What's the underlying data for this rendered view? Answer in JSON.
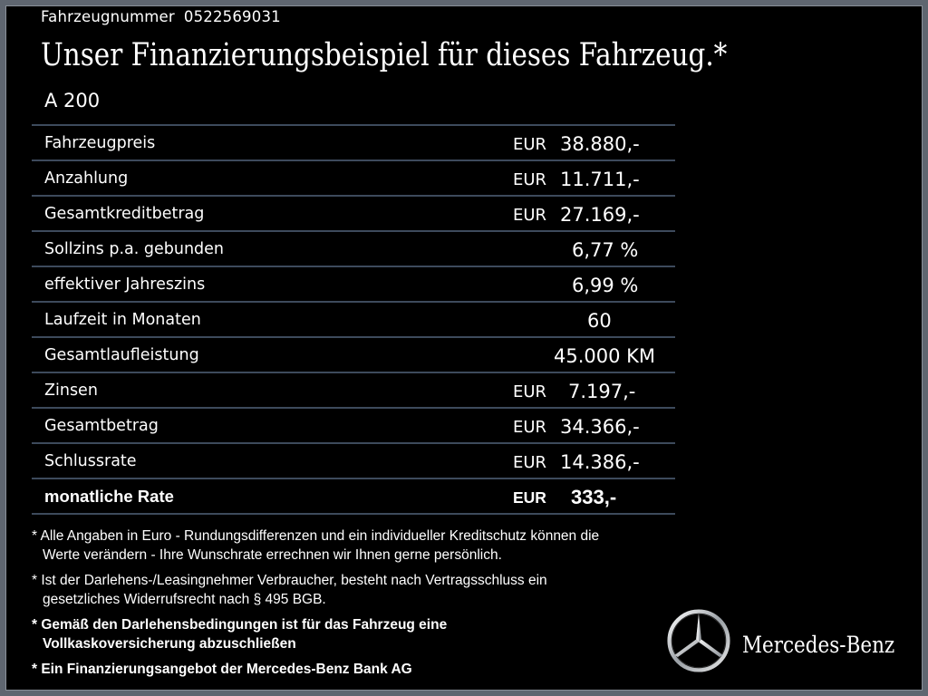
{
  "vehicle": {
    "number_label": "Fahrzeugnummer",
    "number_value": "0522569031"
  },
  "headline": "Unser Finanzierungsbeispiel für dieses Fahrzeug.*",
  "model": "A 200",
  "rows": [
    {
      "label": "Fahrzeugpreis",
      "currency": "EUR",
      "amount": "38.880,-"
    },
    {
      "label": "Anzahlung",
      "currency": "EUR",
      "amount": "11.711,-"
    },
    {
      "label": "Gesamtkreditbetrag",
      "currency": "EUR",
      "amount": "27.169,-"
    },
    {
      "label": "Sollzins p.a. gebunden",
      "value": "6,77 %"
    },
    {
      "label": "effektiver Jahreszins",
      "value": "6,99 %"
    },
    {
      "label": "Laufzeit in Monaten",
      "value": "60"
    },
    {
      "label": "Gesamtlaufleistung",
      "value": "45.000 KM"
    },
    {
      "label": "Zinsen",
      "currency": "EUR",
      "amount": "7.197,-"
    },
    {
      "label": "Gesamtbetrag",
      "currency": "EUR",
      "amount": "34.366,-"
    },
    {
      "label": "Schlussrate",
      "currency": "EUR",
      "amount": "14.386,-"
    },
    {
      "label": "monatliche Rate",
      "currency": "EUR",
      "amount": "333,-"
    }
  ],
  "notes": [
    {
      "line1": "* Alle Angaben in Euro - Rundungsdifferenzen und ein individueller Kreditschutz können die",
      "line2": "Werte verändern - Ihre Wunschrate errechnen wir Ihnen gerne persönlich."
    },
    {
      "line1": "* Ist der Darlehens-/Leasingnehmer Verbraucher, besteht nach Vertragsschluss ein",
      "line2": "gesetzliches Widerrufsrecht nach § 495 BGB."
    },
    {
      "line1": "* Gemäß den Darlehensbedingungen ist für das Fahrzeug eine",
      "line2": "Vollkaskoversicherung abzuschließen"
    },
    {
      "line1": "* Ein Finanzierungsangebot der Mercedes-Benz Bank AG"
    }
  ],
  "brand": {
    "name": "Mercedes-Benz",
    "logo_icon": "mercedes-star-icon",
    "color": "#ffffff"
  },
  "colors": {
    "background": "#000000",
    "outer": "#5f6670",
    "divider": "#3d4a5c",
    "text": "#ffffff"
  }
}
